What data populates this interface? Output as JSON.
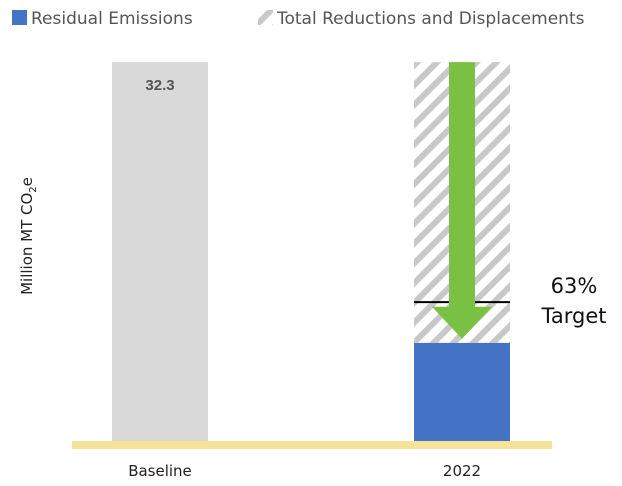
{
  "chart_data": {
    "type": "bar",
    "categories": [
      "Baseline",
      "2022"
    ],
    "series": [
      {
        "name": "Residual Emissions",
        "values": [
          32.3,
          8.5
        ]
      },
      {
        "name": "Total Reductions and Displacements",
        "values": [
          0,
          23.8
        ]
      }
    ],
    "data_labels": [
      "32.3",
      ""
    ],
    "ylabel_main": "Million MT CO",
    "ylabel_sub": "2",
    "ylabel_tail": "e",
    "ylim": [
      0,
      33.5
    ],
    "grid": false,
    "legend_position": "top",
    "target": {
      "value": 11.95,
      "line1": "63%",
      "line2": "Target"
    },
    "colors": {
      "residual": "#4472C4",
      "baseline": "#D9D9D9",
      "hatch_line": "#C8C8C8",
      "arrow": "#7AC143",
      "axis_line": "#F6E39A"
    }
  }
}
